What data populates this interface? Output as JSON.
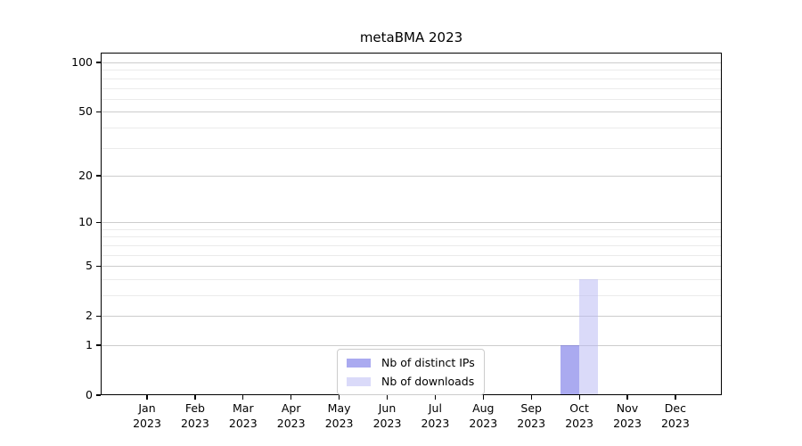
{
  "title": "metaBMA 2023",
  "legend": {
    "items": [
      {
        "label": "Nb of distinct IPs"
      },
      {
        "label": "Nb of downloads"
      }
    ]
  },
  "chart_data": {
    "type": "bar",
    "title": "metaBMA 2023",
    "categories": [
      "Jan",
      "Feb",
      "Mar",
      "Apr",
      "May",
      "Jun",
      "Jul",
      "Aug",
      "Sep",
      "Oct",
      "Nov",
      "Dec"
    ],
    "year_label": "2023",
    "series": [
      {
        "name": "Nb of distinct IPs",
        "color": "#5555e1",
        "alpha": 0.5,
        "values": [
          0,
          0,
          0,
          0,
          0,
          0,
          0,
          0,
          0,
          1,
          0,
          0
        ]
      },
      {
        "name": "Nb of downloads",
        "color": "#b5b5f4",
        "alpha": 0.5,
        "values": [
          0,
          0,
          0,
          0,
          0,
          0,
          0,
          0,
          0,
          4,
          0,
          0
        ]
      }
    ],
    "yscale": "log1p",
    "ylim": [
      0,
      115
    ],
    "y_tick_labels": [
      0,
      1,
      2,
      5,
      10,
      20,
      50,
      100
    ],
    "y_minor_gridlines": [
      3,
      4,
      6,
      7,
      8,
      9,
      30,
      40,
      60,
      70,
      80,
      90
    ],
    "grid": true,
    "xlabel": "",
    "ylabel": "",
    "legend_position": "lower-center-inside",
    "colors": {
      "major_grid": "#cccccc",
      "minor_grid": "#ebebeb",
      "axis": "#000000",
      "background": "#ffffff"
    }
  }
}
